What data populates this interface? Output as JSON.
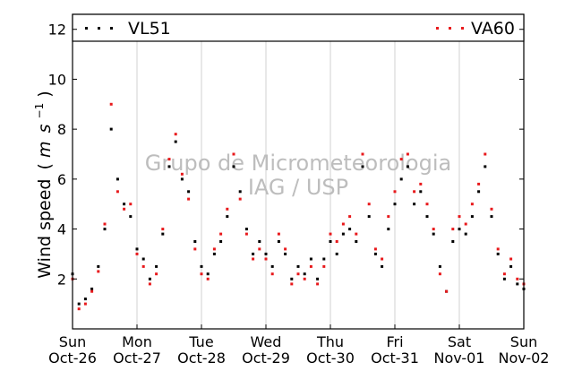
{
  "chart_data": {
    "type": "scatter",
    "title": "",
    "xlabel": "",
    "ylabel": "Wind speed (m s⁻¹)",
    "ylabel_main": "Wind speed",
    "ylabel_unit_open": "(",
    "ylabel_unit_m": "m",
    "ylabel_unit_s": "s",
    "ylabel_unit_exp": "−1",
    "ylabel_unit_close": ")",
    "ylim": [
      0,
      12.6
    ],
    "yticks": [
      2,
      4,
      6,
      8,
      10,
      12
    ],
    "xlim": [
      0,
      7
    ],
    "xticks": [
      {
        "day": 0,
        "top": "Sun",
        "bottom": "Oct-26"
      },
      {
        "day": 1,
        "top": "Mon",
        "bottom": "Oct-27"
      },
      {
        "day": 2,
        "top": "Tue",
        "bottom": "Oct-28"
      },
      {
        "day": 3,
        "top": "Wed",
        "bottom": "Oct-29"
      },
      {
        "day": 4,
        "top": "Thu",
        "bottom": "Oct-30"
      },
      {
        "day": 5,
        "top": "Fri",
        "bottom": "Oct-31"
      },
      {
        "day": 6,
        "top": "Sat",
        "bottom": "Nov-01"
      },
      {
        "day": 7,
        "top": "Sun",
        "bottom": "Nov-02"
      }
    ],
    "grid": "vertical",
    "legend_position": "top",
    "watermark": "Grupo de Micrometeorologia\nIAG / USP",
    "series": [
      {
        "name": "VL51",
        "color": "#000000",
        "x": [
          0.0,
          0.1,
          0.2,
          0.3,
          0.4,
          0.5,
          0.6,
          0.7,
          0.8,
          0.9,
          1.0,
          1.1,
          1.2,
          1.3,
          1.4,
          1.5,
          1.6,
          1.7,
          1.8,
          1.9,
          2.0,
          2.1,
          2.2,
          2.3,
          2.4,
          2.5,
          2.6,
          2.7,
          2.8,
          2.9,
          3.0,
          3.1,
          3.2,
          3.3,
          3.4,
          3.5,
          3.6,
          3.7,
          3.8,
          3.9,
          4.0,
          4.1,
          4.2,
          4.3,
          4.4,
          4.5,
          4.6,
          4.7,
          4.8,
          4.9,
          5.0,
          5.1,
          5.2,
          5.3,
          5.4,
          5.5,
          5.6,
          5.7,
          5.8,
          5.9,
          6.0,
          6.1,
          6.2,
          6.3,
          6.4,
          6.5,
          6.6,
          6.7,
          6.8,
          6.9,
          7.0
        ],
        "y": [
          2.2,
          1.0,
          1.2,
          1.6,
          2.5,
          4.0,
          8.0,
          6.0,
          5.0,
          4.5,
          3.2,
          2.8,
          2.0,
          2.5,
          3.8,
          6.5,
          7.5,
          6.0,
          5.5,
          3.5,
          2.5,
          2.2,
          3.0,
          3.5,
          4.5,
          6.5,
          5.5,
          4.0,
          3.0,
          3.5,
          3.0,
          2.5,
          3.5,
          3.0,
          2.0,
          2.5,
          2.2,
          2.8,
          2.0,
          2.8,
          3.5,
          3.0,
          3.8,
          4.0,
          3.5,
          6.5,
          4.5,
          3.0,
          2.5,
          4.0,
          5.0,
          6.0,
          6.5,
          5.0,
          5.5,
          4.5,
          3.8,
          2.5,
          1.5,
          3.5,
          4.0,
          3.8,
          4.5,
          5.5,
          6.5,
          4.5,
          3.0,
          2.0,
          2.5,
          1.8,
          1.6
        ]
      },
      {
        "name": "VA60",
        "color": "#e8191c",
        "x": [
          0.0,
          0.1,
          0.2,
          0.3,
          0.4,
          0.5,
          0.6,
          0.7,
          0.8,
          0.9,
          1.0,
          1.1,
          1.2,
          1.3,
          1.4,
          1.5,
          1.6,
          1.7,
          1.8,
          1.9,
          2.0,
          2.1,
          2.2,
          2.3,
          2.4,
          2.5,
          2.6,
          2.7,
          2.8,
          2.9,
          3.0,
          3.1,
          3.2,
          3.3,
          3.4,
          3.5,
          3.6,
          3.7,
          3.8,
          3.9,
          4.0,
          4.1,
          4.2,
          4.3,
          4.4,
          4.5,
          4.6,
          4.7,
          4.8,
          4.9,
          5.0,
          5.1,
          5.2,
          5.3,
          5.4,
          5.5,
          5.6,
          5.7,
          5.8,
          5.9,
          6.0,
          6.1,
          6.2,
          6.3,
          6.4,
          6.5,
          6.6,
          6.7,
          6.8,
          6.9,
          7.0
        ],
        "y": [
          2.0,
          0.8,
          1.0,
          1.5,
          2.3,
          4.2,
          9.0,
          5.5,
          4.8,
          5.0,
          3.0,
          2.5,
          1.8,
          2.2,
          4.0,
          6.8,
          7.8,
          6.2,
          5.2,
          3.2,
          2.2,
          2.0,
          3.2,
          3.8,
          4.8,
          7.0,
          5.2,
          3.8,
          2.8,
          3.2,
          2.8,
          2.2,
          3.8,
          3.2,
          1.8,
          2.2,
          2.0,
          2.5,
          1.8,
          2.5,
          3.8,
          3.5,
          4.2,
          4.5,
          3.8,
          7.0,
          5.0,
          3.2,
          2.8,
          4.5,
          5.5,
          6.8,
          7.0,
          5.5,
          5.8,
          5.0,
          4.0,
          2.2,
          1.5,
          4.0,
          4.5,
          4.2,
          5.0,
          5.8,
          7.0,
          4.8,
          3.2,
          2.2,
          2.8,
          2.0,
          1.8
        ]
      }
    ]
  }
}
